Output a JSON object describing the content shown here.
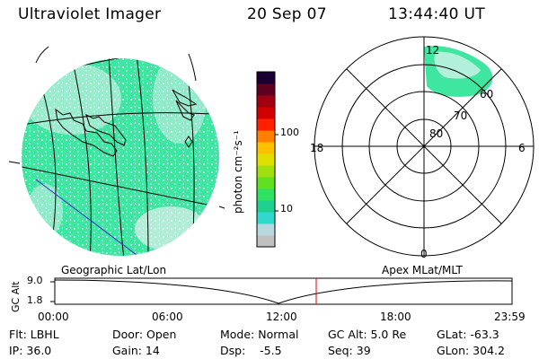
{
  "header": {
    "title": "Ultraviolet Imager",
    "date": "20 Sep 07",
    "time": "13:44:40 UT"
  },
  "colorbar": {
    "unit_label": "photon cm⁻²s⁻¹",
    "ticks": [
      "100",
      "10"
    ],
    "colors": [
      "#c0c0c0",
      "#b8d8e0",
      "#30d8d0",
      "#20d090",
      "#30e060",
      "#60e020",
      "#a0e010",
      "#e0e000",
      "#ffc000",
      "#ff8000",
      "#ff2000",
      "#d00000",
      "#a00010",
      "#600020",
      "#1a0030"
    ]
  },
  "left_panel": {
    "label": "Geographic Lat/Lon",
    "fill_color": "#3fe6a0",
    "grid_color": "#000000",
    "blue_line_color": "#3030c0"
  },
  "right_panel": {
    "label": "Apex MLat/MLT",
    "mlt_labels": {
      "top": "12",
      "left": "18",
      "right": "6",
      "bottom": "0"
    },
    "mlat_labels": [
      "80",
      "70",
      "60"
    ]
  },
  "timeline": {
    "y_axis_title": "GC Alt",
    "y_ticks": [
      "9.0",
      "1.8"
    ],
    "x_ticks": [
      "00:00",
      "06:00",
      "12:00",
      "18:00",
      "23:59"
    ],
    "marker_color": "#e00000"
  },
  "footer": {
    "flt": "Flt: LBHL",
    "ip": "IP: 36.0",
    "door": "Door: Open",
    "gain": "Gain: 14",
    "mode": "Mode: Normal",
    "dsp": "Dsp:    -5.5",
    "gc_alt": "GC Alt: 5.0 Re",
    "seq": "Seq: 39",
    "glat": "GLat: -63.3",
    "glon": "GLon: 304.2"
  }
}
